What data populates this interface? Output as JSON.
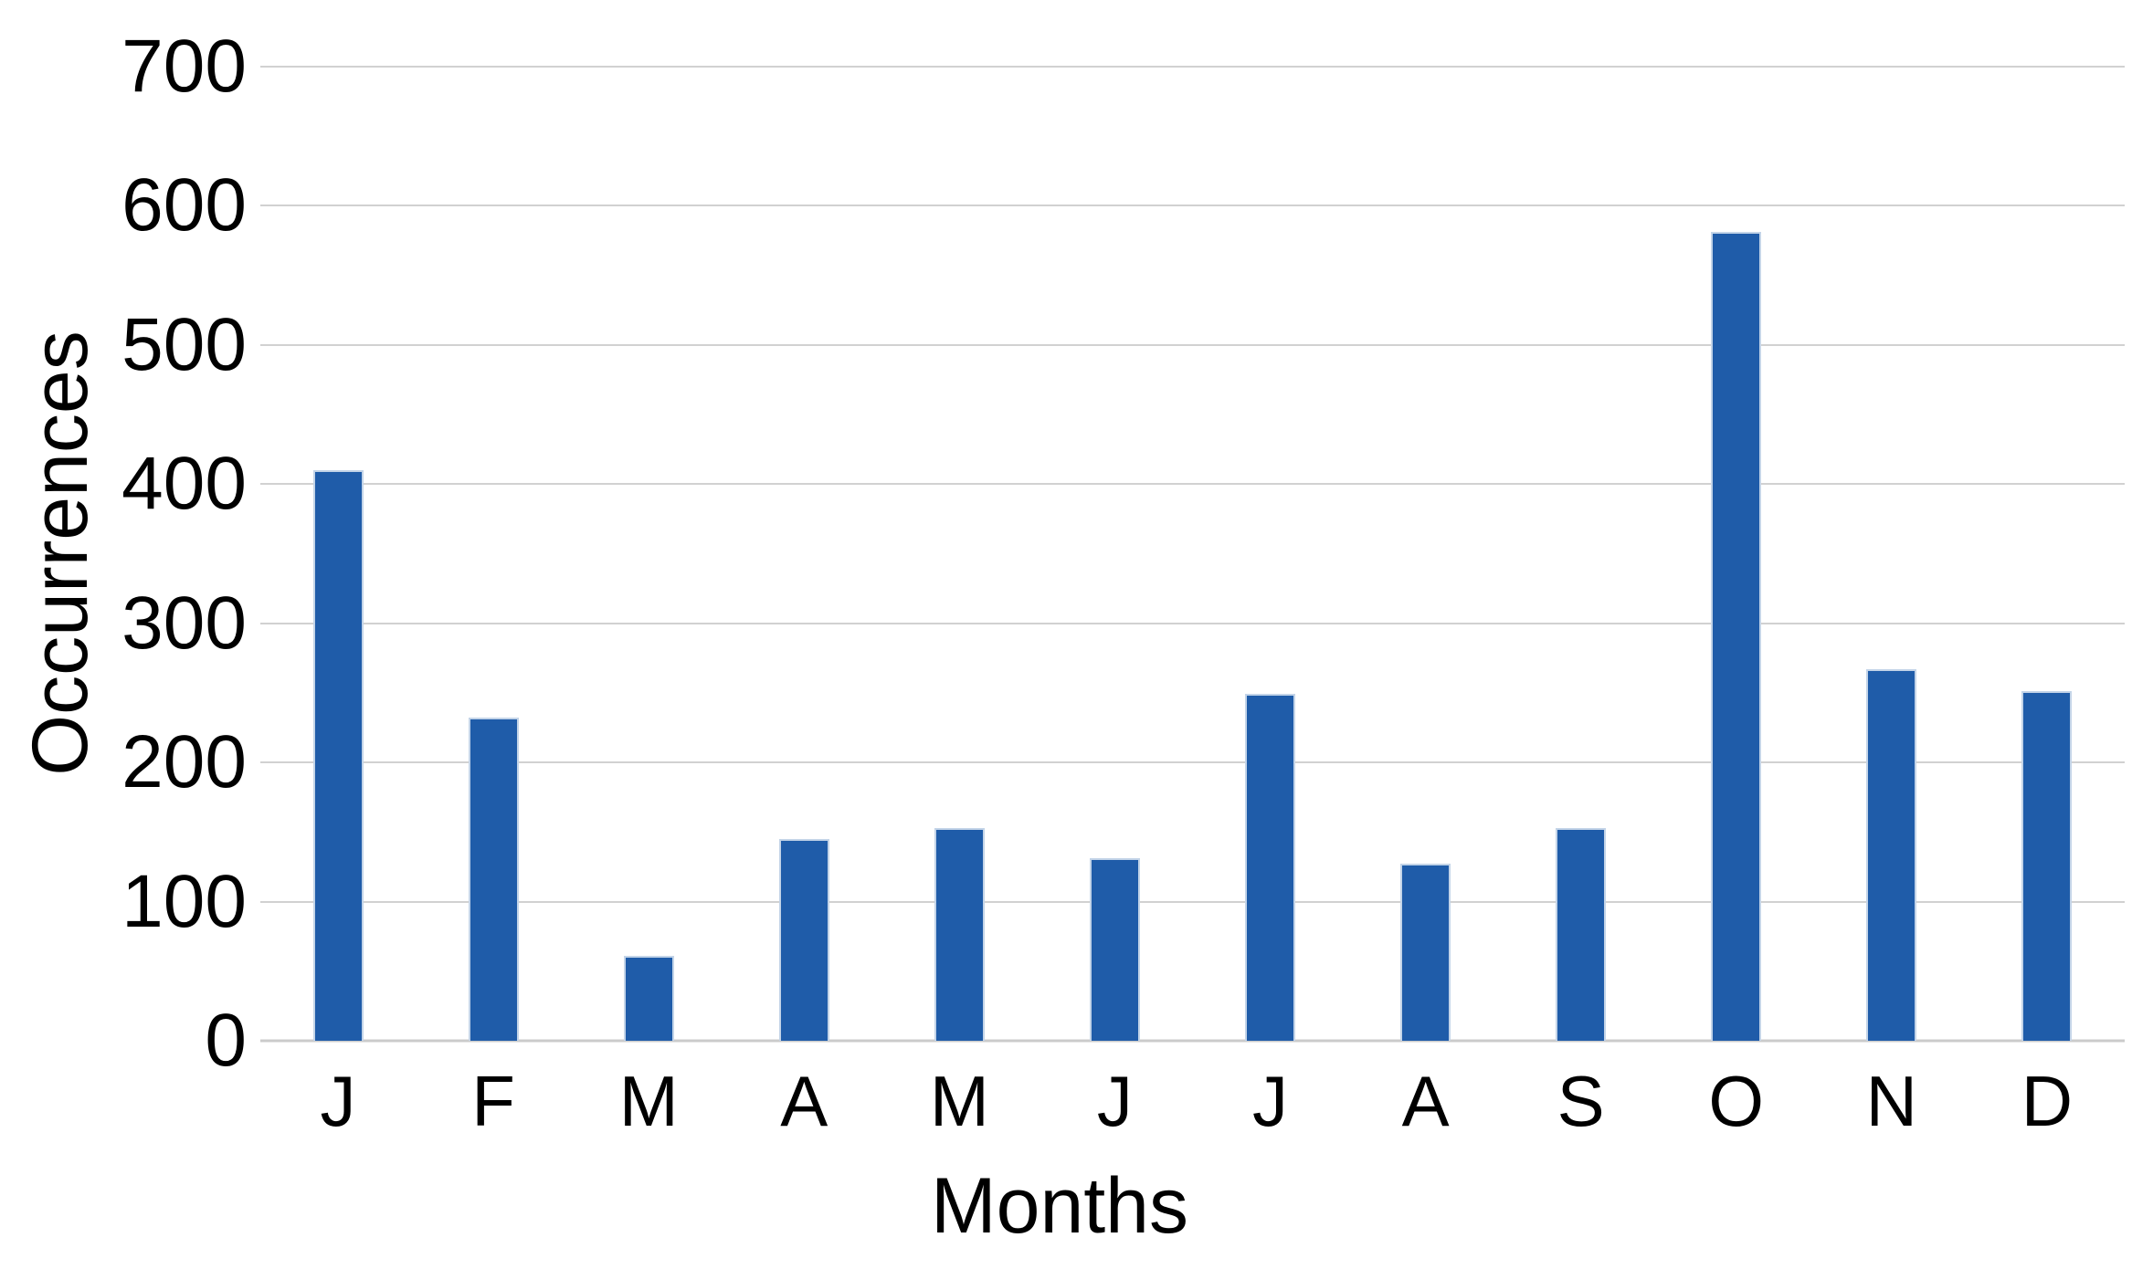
{
  "chart_data": {
    "type": "bar",
    "title": "",
    "xlabel": "Months",
    "ylabel": "Occurrences",
    "categories": [
      "J",
      "F",
      "M",
      "A",
      "M",
      "J",
      "J",
      "A",
      "S",
      "O",
      "N",
      "D"
    ],
    "values": [
      410,
      232,
      61,
      145,
      153,
      131,
      249,
      127,
      153,
      581,
      267,
      251
    ],
    "ylim": [
      0,
      700
    ],
    "yticks": [
      0,
      100,
      200,
      300,
      400,
      500,
      600,
      700
    ],
    "grid": "horizontal-only",
    "legend_position": "none",
    "colors": {
      "bar_fill": "#1F5CA9",
      "bar_edge": "#C3D4E8",
      "gridline": "#D1D1D1",
      "baseline": "#CBCBCB",
      "text": "#000000",
      "background": "#FFFFFF"
    }
  }
}
